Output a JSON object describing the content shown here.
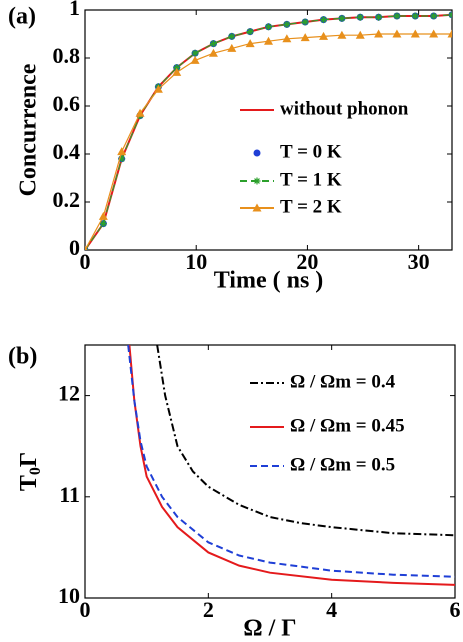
{
  "chart_data": [
    {
      "type": "line",
      "label": "(a)",
      "y_label": "Concurrence",
      "x_label": "Time ( ns )",
      "x": [
        0,
        1.65,
        3.3,
        4.95,
        6.6,
        8.25,
        9.9,
        11.55,
        13.2,
        14.85,
        16.5,
        18.15,
        19.8,
        21.45,
        23.1,
        24.75,
        26.4,
        28.05,
        29.7,
        31.35,
        33
      ],
      "xlim": [
        0,
        33
      ],
      "ylim": [
        0,
        1
      ],
      "xticks": [
        0,
        10,
        20,
        30
      ],
      "yticks": [
        0,
        0.2,
        0.4,
        0.6,
        0.8,
        1
      ],
      "series": [
        {
          "name": "without phonon",
          "color": "#e41a1c",
          "linestyle": "solid",
          "marker": null,
          "values": [
            0,
            0.11,
            0.38,
            0.56,
            0.68,
            0.76,
            0.82,
            0.86,
            0.89,
            0.91,
            0.93,
            0.94,
            0.95,
            0.96,
            0.965,
            0.97,
            0.97,
            0.975,
            0.975,
            0.975,
            0.98
          ]
        },
        {
          "name": "T = 0 K",
          "color": "#1f3fd6",
          "linestyle": "none",
          "marker": "circle",
          "values": [
            0,
            0.11,
            0.38,
            0.56,
            0.68,
            0.76,
            0.82,
            0.86,
            0.89,
            0.91,
            0.93,
            0.94,
            0.95,
            0.96,
            0.965,
            0.97,
            0.97,
            0.975,
            0.975,
            0.975,
            0.98
          ]
        },
        {
          "name": "T = 1 K",
          "color": "#2ca02c",
          "linestyle": "dashed",
          "marker": "star",
          "values": [
            0,
            0.11,
            0.38,
            0.56,
            0.68,
            0.76,
            0.82,
            0.86,
            0.89,
            0.91,
            0.93,
            0.94,
            0.95,
            0.96,
            0.965,
            0.97,
            0.97,
            0.975,
            0.975,
            0.975,
            0.98
          ]
        },
        {
          "name": "T = 2 K",
          "color": "#e8901c",
          "linestyle": "solid",
          "marker": "triangle",
          "values": [
            0,
            0.14,
            0.41,
            0.57,
            0.67,
            0.74,
            0.79,
            0.82,
            0.84,
            0.86,
            0.87,
            0.88,
            0.885,
            0.89,
            0.895,
            0.895,
            0.9,
            0.9,
            0.9,
            0.9,
            0.9
          ]
        }
      ]
    },
    {
      "type": "line",
      "label": "(b)",
      "y_label": {
        "text": "T",
        "sub": "0",
        "after": "Γ"
      },
      "x_label": "Ω / Γ",
      "xlim": [
        0,
        6
      ],
      "ylim": [
        10,
        12.5
      ],
      "xticks": [
        0,
        2,
        4,
        6
      ],
      "yticks": [
        10,
        11,
        12
      ],
      "series": [
        {
          "name": "Ω / Ωm = 0.4",
          "color": "#000000",
          "linestyle": "dashdot",
          "marker": null,
          "x": [
            1.17,
            1.3,
            1.5,
            1.75,
            2,
            2.5,
            3,
            3.5,
            4,
            5,
            6
          ],
          "values": [
            12.5,
            12.0,
            11.5,
            11.25,
            11.1,
            10.92,
            10.8,
            10.74,
            10.7,
            10.64,
            10.62
          ]
        },
        {
          "name": "Ω / Ωm = 0.45",
          "color": "#e41a1c",
          "linestyle": "solid",
          "marker": null,
          "x": [
            0.72,
            0.8,
            0.9,
            1,
            1.25,
            1.5,
            2,
            2.5,
            3,
            4,
            5,
            6
          ],
          "values": [
            12.5,
            11.95,
            11.5,
            11.2,
            10.9,
            10.7,
            10.45,
            10.32,
            10.25,
            10.18,
            10.15,
            10.13
          ]
        },
        {
          "name": "Ω / Ωm = 0.5",
          "color": "#1f3fd6",
          "linestyle": "dashed",
          "marker": null,
          "x": [
            0.7,
            0.8,
            0.9,
            1,
            1.25,
            1.5,
            2,
            2.5,
            3,
            4,
            5,
            6
          ],
          "values": [
            12.5,
            11.95,
            11.55,
            11.3,
            11.0,
            10.8,
            10.55,
            10.42,
            10.35,
            10.27,
            10.23,
            10.21
          ]
        }
      ]
    }
  ]
}
